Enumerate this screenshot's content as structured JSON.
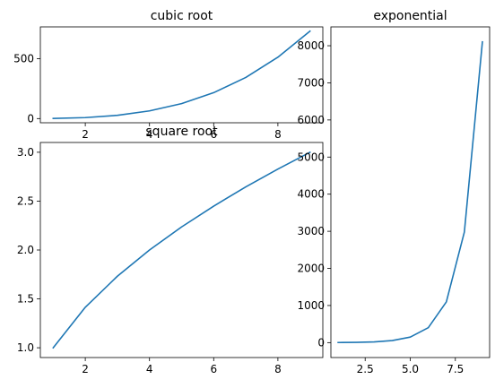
{
  "chart_data": [
    {
      "type": "line",
      "title": "cubic root",
      "x": [
        1,
        2,
        3,
        4,
        5,
        6,
        7,
        8,
        9
      ],
      "series": [
        {
          "values": [
            1,
            8,
            27,
            64,
            125,
            216,
            343,
            512,
            729
          ]
        }
      ],
      "xlim": [
        0.6,
        9.4
      ],
      "ylim": [
        -35,
        765
      ],
      "xticks": [
        2,
        4,
        6,
        8
      ],
      "yticks": [
        0,
        500
      ],
      "xlabel": "",
      "ylabel": "",
      "grid": false,
      "color": "#1f77b4"
    },
    {
      "type": "line",
      "title": "square root",
      "x": [
        1,
        2,
        3,
        4,
        5,
        6,
        7,
        8,
        9
      ],
      "series": [
        {
          "values": [
            1,
            1.414,
            1.732,
            2,
            2.236,
            2.449,
            2.646,
            2.828,
            3
          ]
        }
      ],
      "xlim": [
        0.6,
        9.4
      ],
      "ylim": [
        0.9,
        3.1
      ],
      "xticks": [
        2,
        4,
        6,
        8
      ],
      "yticks": [
        1.0,
        1.5,
        2.0,
        2.5,
        3.0
      ],
      "xlabel": "",
      "ylabel": "",
      "grid": false,
      "color": "#1f77b4"
    },
    {
      "type": "line",
      "title": "exponential",
      "x": [
        1,
        2,
        3,
        4,
        5,
        6,
        7,
        8,
        9
      ],
      "series": [
        {
          "values": [
            2.718,
            7.389,
            20.09,
            54.6,
            148.4,
            403.4,
            1096.6,
            2981,
            8103
          ]
        }
      ],
      "xlim": [
        0.6,
        9.4
      ],
      "ylim": [
        -402,
        8508
      ],
      "xticks": [
        2.5,
        5.0,
        7.5
      ],
      "yticks": [
        0,
        1000,
        2000,
        3000,
        4000,
        5000,
        6000,
        7000,
        8000
      ],
      "xlabel": "",
      "ylabel": "",
      "grid": false,
      "color": "#1f77b4"
    }
  ]
}
